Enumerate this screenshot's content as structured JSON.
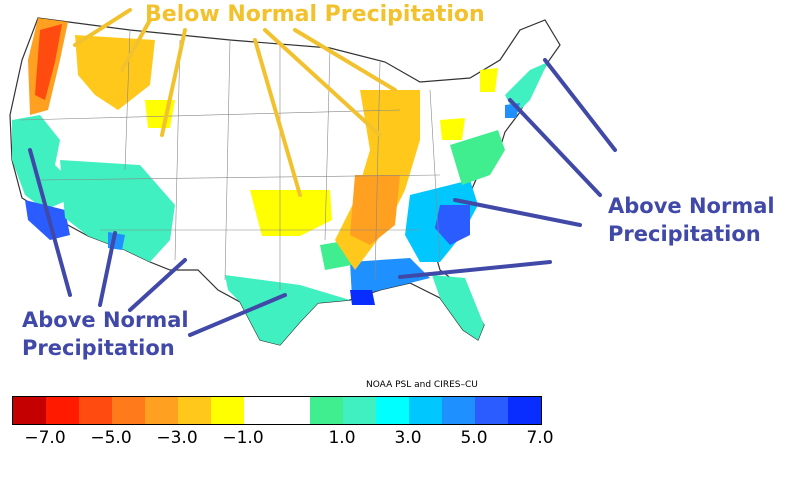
{
  "annotations": {
    "below_normal": "Below Normal Precipitation",
    "above_normal_right_line1": "Above Normal",
    "above_normal_right_line2": "Precipitation",
    "above_normal_left_line1": "Above Normal",
    "above_normal_left_line2": "Precipitation"
  },
  "credit": "NOAA PSL and CIRES–CU",
  "legend": {
    "colors": [
      "#c40000",
      "#ff1a00",
      "#ff4a10",
      "#ff7a1a",
      "#ffa020",
      "#ffc81a",
      "#ffff00",
      "#ffffff",
      "#ffffff",
      "#40ee90",
      "#40f0c0",
      "#00ffff",
      "#00c8ff",
      "#1e90ff",
      "#2a5cff",
      "#0a2dff"
    ],
    "tick_labels": [
      "−7.0",
      "−5.0",
      "−3.0",
      "−1.0",
      "1.0",
      "3.0",
      "5.0",
      "7.0"
    ]
  },
  "colors": {
    "annotation_yellow": "#f2c22e",
    "annotation_blue": "#4149a8",
    "map_border": "#333333"
  }
}
